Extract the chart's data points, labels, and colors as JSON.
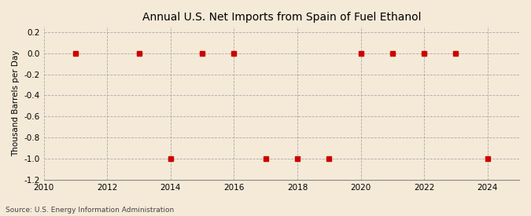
{
  "title": "Annual U.S. Net Imports from Spain of Fuel Ethanol",
  "ylabel": "Thousand Barrels per Day",
  "source": "Source: U.S. Energy Information Administration",
  "background_color": "#f5ead8",
  "plot_background_color": "#f5ead8",
  "xlim": [
    2010,
    2025
  ],
  "ylim": [
    -1.2,
    0.25
  ],
  "yticks": [
    0.2,
    0.0,
    -0.2,
    -0.4,
    -0.6,
    -0.8,
    -1.0,
    -1.2
  ],
  "xticks": [
    2010,
    2012,
    2014,
    2016,
    2018,
    2020,
    2022,
    2024
  ],
  "data_x": [
    2011,
    2013,
    2014,
    2015,
    2016,
    2017,
    2018,
    2019,
    2020,
    2021,
    2022,
    2023,
    2024
  ],
  "data_y": [
    0.0,
    0.0,
    -1.0,
    0.0,
    0.0,
    -1.0,
    -1.0,
    -1.0,
    0.0,
    0.0,
    0.0,
    0.0,
    -1.0
  ],
  "marker_color": "#cc0000",
  "marker_size": 4,
  "grid_color": "#aaaaaa",
  "title_fontsize": 10,
  "label_fontsize": 7.5,
  "tick_fontsize": 7.5,
  "source_fontsize": 6.5
}
